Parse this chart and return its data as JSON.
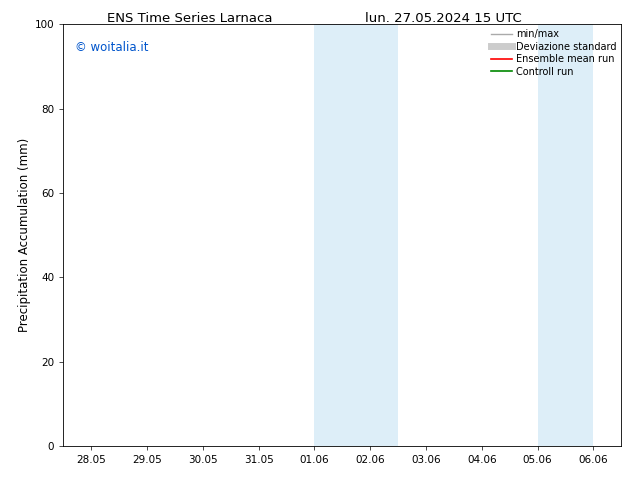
{
  "title_left": "ENS Time Series Larnaca",
  "title_right": "lun. 27.05.2024 15 UTC",
  "ylabel": "Precipitation Accumulation (mm)",
  "watermark": "© woitalia.it",
  "watermark_color": "#0055cc",
  "ylim": [
    0,
    100
  ],
  "yticks": [
    0,
    20,
    40,
    60,
    80,
    100
  ],
  "xtick_labels": [
    "28.05",
    "29.05",
    "30.05",
    "31.05",
    "01.06",
    "02.06",
    "03.06",
    "04.06",
    "05.06",
    "06.06"
  ],
  "xtick_positions": [
    0,
    1,
    2,
    3,
    4,
    5,
    6,
    7,
    8,
    9
  ],
  "xlim": [
    -0.5,
    9.5
  ],
  "shaded_regions": [
    {
      "xstart": 4.0,
      "xend": 5.5,
      "color": "#ddeef8"
    },
    {
      "xstart": 8.0,
      "xend": 9.0,
      "color": "#ddeef8"
    }
  ],
  "legend_entries": [
    {
      "label": "min/max",
      "color": "#aaaaaa",
      "lw": 1.0
    },
    {
      "label": "Deviazione standard",
      "color": "#cccccc",
      "lw": 5.0
    },
    {
      "label": "Ensemble mean run",
      "color": "#ff0000",
      "lw": 1.2
    },
    {
      "label": "Controll run",
      "color": "#008800",
      "lw": 1.2
    }
  ],
  "background_color": "#ffffff",
  "title_fontsize": 9.5,
  "tick_fontsize": 7.5,
  "ylabel_fontsize": 8.5,
  "legend_fontsize": 7.0,
  "watermark_fontsize": 8.5
}
